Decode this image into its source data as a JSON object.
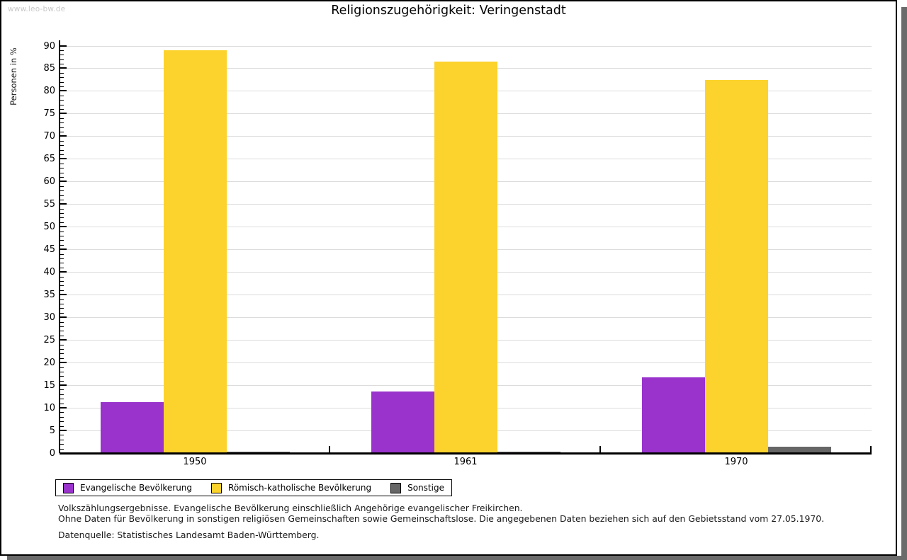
{
  "watermark": "www.leo-bw.de",
  "title": "Religionszugehörigkeit: Veringenstadt",
  "chart_data": {
    "type": "bar",
    "title": "Religionszugehörigkeit: Veringenstadt",
    "ylabel": "Personen in %",
    "xlabel": "",
    "categories": [
      "1950",
      "1961",
      "1970"
    ],
    "series": [
      {
        "name": "Evangelische Bevölkerung",
        "color": "#9933cc",
        "values": [
          11.1,
          13.5,
          16.5
        ]
      },
      {
        "name": "Römisch-katholische Bevölkerung",
        "color": "#fcd32c",
        "values": [
          88.8,
          86.4,
          82.3
        ]
      },
      {
        "name": "Sonstige",
        "color": "#666666",
        "values": [
          0.1,
          0.1,
          1.2
        ]
      }
    ],
    "ylim": [
      0,
      90
    ],
    "ytick_step": 5,
    "yminor_step": 1,
    "grid": true,
    "legend_position": "bottom",
    "grid_color": "#dcdcdc"
  },
  "footnotes": [
    "Volkszählungsergebnisse. Evangelische Bevölkerung einschließlich Angehörige evangelischer Freikirchen.",
    "Ohne Daten für Bevölkerung in sonstigen religiösen Gemeinschaften sowie Gemeinschaftslose. Die angegebenen Daten beziehen sich auf den Gebietsstand vom 27.05.1970.",
    "Datenquelle: Statistisches Landesamt Baden-Württemberg."
  ]
}
